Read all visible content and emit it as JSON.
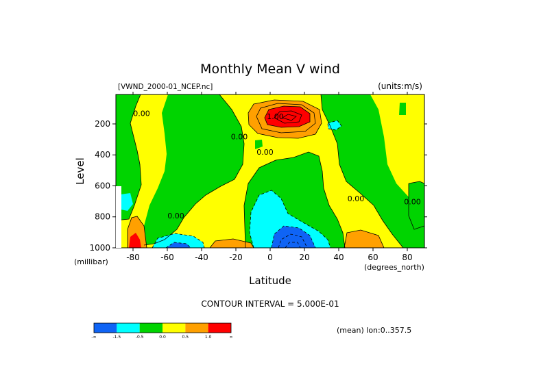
{
  "chart_data": {
    "type": "heatmap",
    "title": "Monthly Mean V wind",
    "dataset_label": "[VWND_2000-01_NCEP.nc]",
    "units_label": "(units:m/s)",
    "xlabel": "Latitude",
    "x_units_label": "(degrees_north)",
    "ylabel": "Level",
    "y_units_label": "(millibar)",
    "xlim": [
      -90,
      90
    ],
    "ylim": [
      1000,
      10
    ],
    "x_ticks": [
      -80,
      -60,
      -40,
      -20,
      0,
      20,
      40,
      60,
      80
    ],
    "x_tick_labels": [
      "-80",
      "-60",
      "-40",
      "-20",
      "0",
      "20",
      "40",
      "60",
      "80"
    ],
    "y_ticks": [
      200,
      400,
      600,
      800,
      1000
    ],
    "y_tick_labels": [
      "200",
      "400",
      "600",
      "800",
      "1000"
    ],
    "contour_interval_label": "CONTOUR INTERVAL = 5.000E-01",
    "mean_label": "(mean) lon:0..357.5",
    "contour_labels": [
      {
        "text": "0.00",
        "x": -75,
        "y": 150
      },
      {
        "text": "1.00",
        "x": 3,
        "y": 170
      },
      {
        "text": "0.00",
        "x": -18,
        "y": 300
      },
      {
        "text": "0.00",
        "x": -3,
        "y": 400
      },
      {
        "text": "0.00",
        "x": 50,
        "y": 700
      },
      {
        "text": "0.00",
        "x": 83,
        "y": 720
      },
      {
        "text": "0.00",
        "x": -55,
        "y": 810
      }
    ],
    "levels": [
      "-∞",
      "-1.5",
      "-0.5",
      "0.0",
      "0.5",
      "1.0",
      "∞"
    ],
    "level_colors": [
      "#0f64f5",
      "#00ffff",
      "#00d400",
      "#ffff00",
      "#ffa000",
      "#ff0000"
    ],
    "color_labels": [
      "-∞",
      "-1.5",
      "-0.5",
      "0.0",
      "0.5",
      "1.0",
      "∞"
    ]
  }
}
